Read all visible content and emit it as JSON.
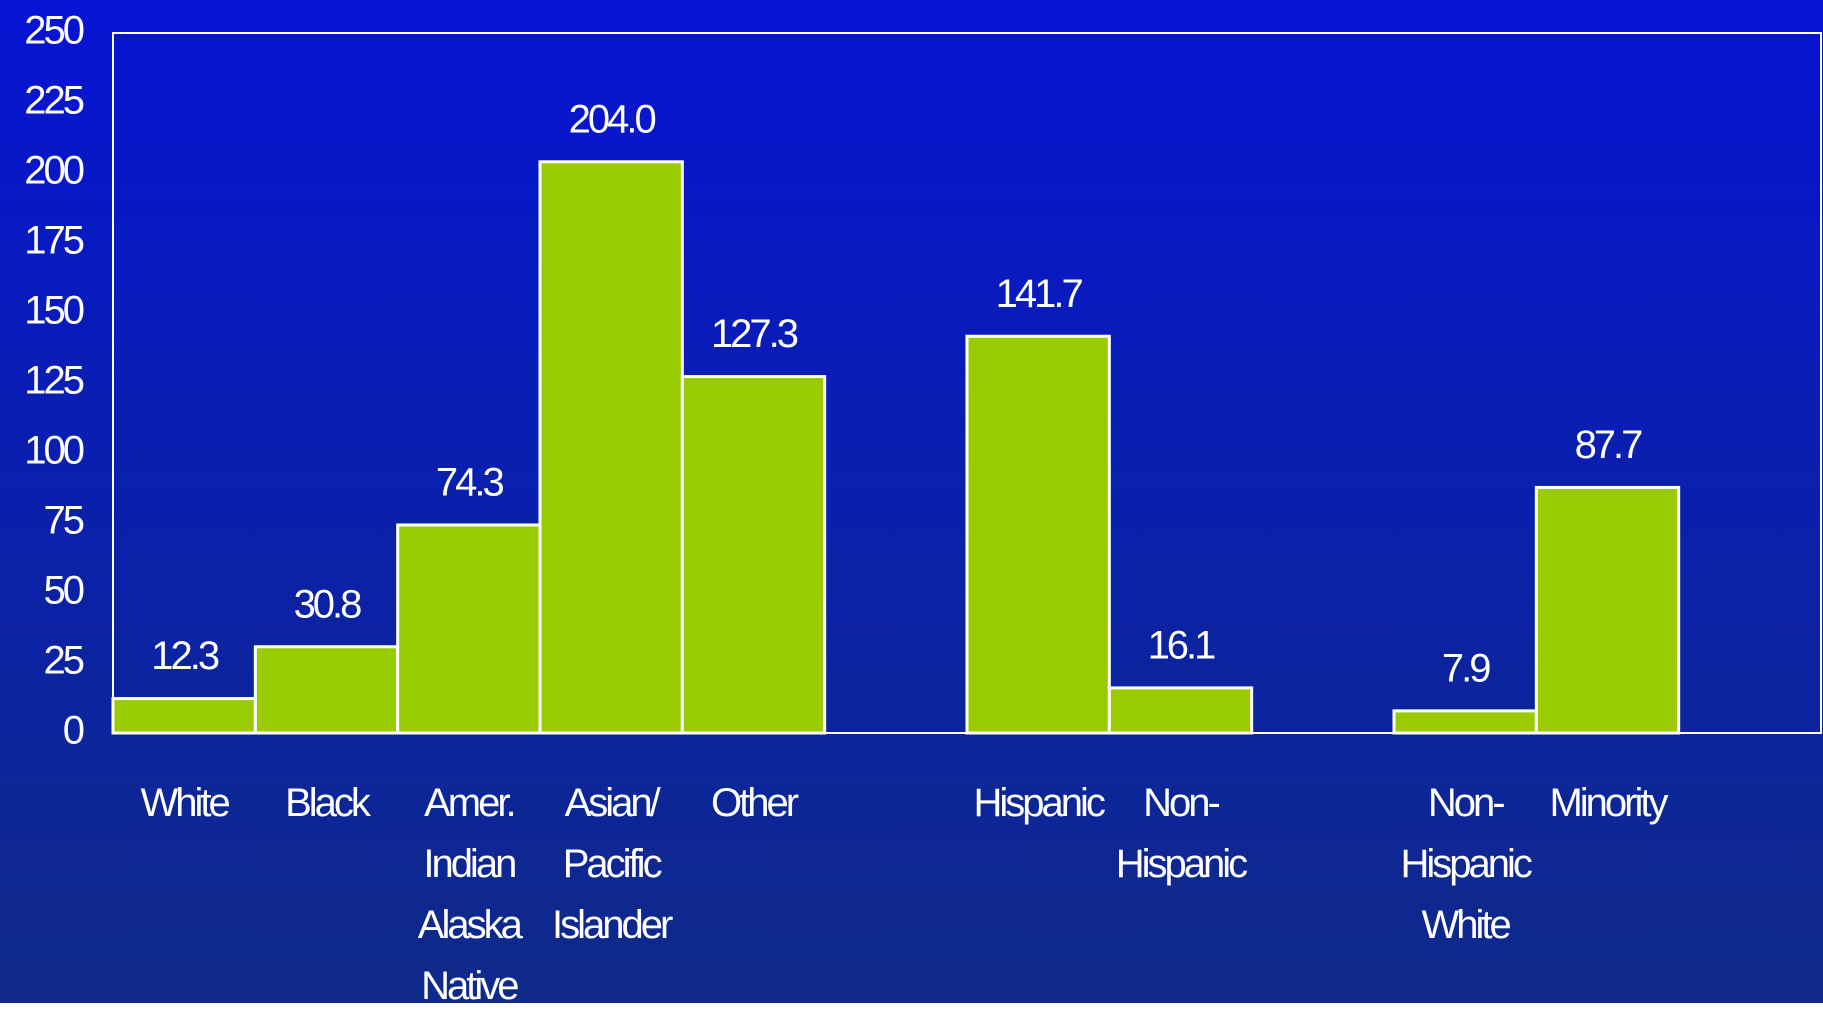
{
  "chart_data": {
    "type": "bar",
    "categories": [
      "White",
      "Black",
      "Amer.\nIndian\nAlaska\nNative",
      "Asian/\nPacific\nIslander",
      "Other",
      null,
      "Hispanic",
      "Non-\nHispanic",
      null,
      "Non-\nHispanic\nWhite",
      "Minority"
    ],
    "values": [
      12.3,
      30.8,
      74.3,
      204.0,
      127.3,
      null,
      141.7,
      16.1,
      null,
      7.9,
      87.7
    ],
    "value_labels": [
      "12.3",
      "30.8",
      "74.3",
      "204.0",
      "127.3",
      null,
      "141.7",
      "16.1",
      null,
      "7.9",
      "87.7"
    ],
    "color": "#99cc00",
    "ylim": [
      0,
      250
    ],
    "yticks": [
      0,
      25,
      50,
      75,
      100,
      125,
      150,
      175,
      200,
      225,
      250
    ]
  }
}
